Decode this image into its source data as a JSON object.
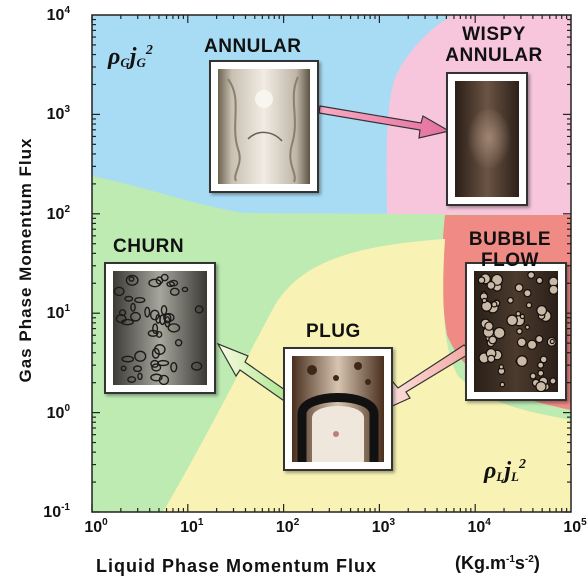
{
  "axes": {
    "y_label": "Gas Phase Momentum Flux",
    "x_label": "Liquid Phase Momentum Flux",
    "x_unit": "(Kg.m-1s-2)",
    "y_ticks": [
      {
        "base": "10",
        "exp": "4"
      },
      {
        "base": "10",
        "exp": "3"
      },
      {
        "base": "10",
        "exp": "2"
      },
      {
        "base": "10",
        "exp": "1"
      },
      {
        "base": "10",
        "exp": "0"
      },
      {
        "base": "10",
        "exp": "-1"
      }
    ],
    "x_ticks": [
      {
        "base": "10",
        "exp": "0"
      },
      {
        "base": "10",
        "exp": "1"
      },
      {
        "base": "10",
        "exp": "2"
      },
      {
        "base": "10",
        "exp": "3"
      },
      {
        "base": "10",
        "exp": "4"
      },
      {
        "base": "10",
        "exp": "5"
      }
    ],
    "scale": "log-log",
    "x_range": [
      1,
      100000
    ],
    "y_range": [
      0.1,
      10000
    ]
  },
  "regions": {
    "annular": {
      "label": "ANNULAR",
      "color": "#a8dcf4"
    },
    "wispy_annular": {
      "line1": "WISPY",
      "line2": "ANNULAR",
      "color": "#f7c6dd"
    },
    "churn": {
      "label": "CHURN",
      "color": "#bdebb2"
    },
    "bubble_flow": {
      "line1": "BUBBLE",
      "line2": "FLOW",
      "color": "#f08a84"
    },
    "plug": {
      "label": "PLUG",
      "color": "#f8f3b4"
    }
  },
  "formulas": {
    "gas": {
      "rho": "ρ",
      "rho_sub": "G",
      "j": "j",
      "j_sub": "G",
      "exp": "2"
    },
    "liquid": {
      "rho": "ρ",
      "rho_sub": "L",
      "j": "j",
      "j_sub": "L",
      "exp": "2"
    }
  }
}
